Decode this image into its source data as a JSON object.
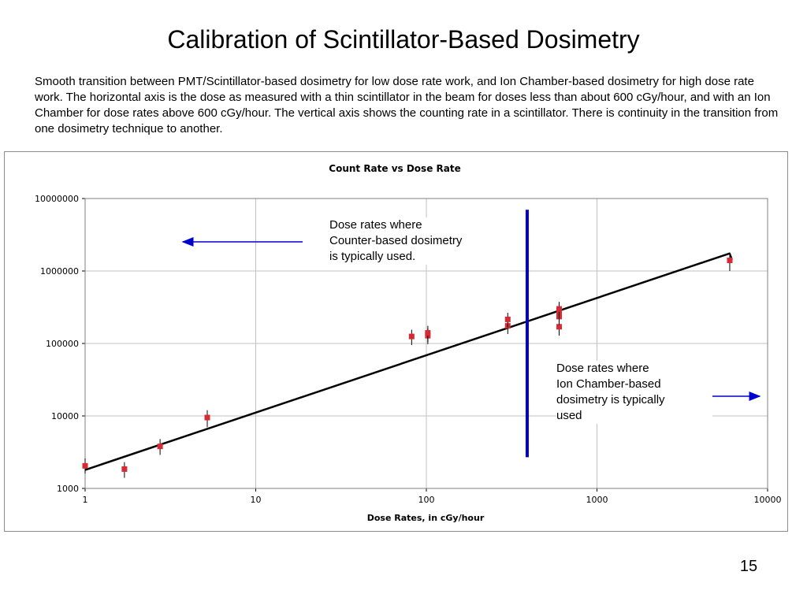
{
  "slide": {
    "title": "Calibration of Scintillator-Based Dosimetry",
    "description": "Smooth transition between PMT/Scintillator-based dosimetry for low dose rate work, and Ion Chamber-based dosimetry for high dose rate work.  The horizontal axis is the dose as measured with a thin scintillator in the beam for doses less than about 600 cGy/hour, and with an Ion Chamber for dose rates above 600 cGy/hour.  The vertical axis shows the counting rate in a scintillator.  There is continuity in the transition from one dosimetry technique to another.",
    "page_number": "15"
  },
  "chart_data": {
    "type": "scatter",
    "title": "Count Rate vs Dose Rate",
    "xlabel": "Dose Rates, in cGy/hour",
    "ylabel": "",
    "x_scale": "log",
    "y_scale": "log",
    "xlim": [
      1,
      10000
    ],
    "ylim": [
      1000,
      10000000
    ],
    "x_ticks": [
      "1",
      "10",
      "100",
      "1000",
      "10000"
    ],
    "y_ticks": [
      "1000",
      "10000",
      "100000",
      "1000000",
      "10000000"
    ],
    "grid": true,
    "legend": "none",
    "colors": {
      "marker": "#d62b35",
      "error_bar": "#000000",
      "fit_line": "#000000",
      "divider": "#0000cc",
      "arrow": "#0000cc",
      "grid": "#c0c0c0",
      "plot_background": "#ffffff"
    },
    "points": [
      {
        "x": 1.0,
        "y": 2050,
        "ylow": 1600,
        "yhigh": 2600
      },
      {
        "x": 1.7,
        "y": 1850,
        "ylow": 1400,
        "yhigh": 2300
      },
      {
        "x": 2.75,
        "y": 3800,
        "ylow": 2900,
        "yhigh": 4800
      },
      {
        "x": 5.2,
        "y": 9500,
        "ylow": 7000,
        "yhigh": 12000
      },
      {
        "x": 82,
        "y": 125000,
        "ylow": 95000,
        "yhigh": 155000
      },
      {
        "x": 102,
        "y": 128000,
        "ylow": 98000,
        "yhigh": 160000
      },
      {
        "x": 102,
        "y": 140000,
        "ylow": 105000,
        "yhigh": 175000
      },
      {
        "x": 300,
        "y": 175000,
        "ylow": 135000,
        "yhigh": 215000
      },
      {
        "x": 300,
        "y": 215000,
        "ylow": 165000,
        "yhigh": 265000
      },
      {
        "x": 600,
        "y": 170000,
        "ylow": 128000,
        "yhigh": 215000
      },
      {
        "x": 600,
        "y": 235000,
        "ylow": 180000,
        "yhigh": 290000
      },
      {
        "x": 600,
        "y": 275000,
        "ylow": 210000,
        "yhigh": 345000
      },
      {
        "x": 600,
        "y": 300000,
        "ylow": 230000,
        "yhigh": 375000
      },
      {
        "x": 6000,
        "y": 1400000,
        "ylow": 1000000,
        "yhigh": 1800000
      }
    ],
    "fit_line": {
      "x": [
        1,
        6000
      ],
      "y": [
        1800,
        1750000
      ]
    },
    "divider": {
      "x": 390,
      "y_range": [
        2700,
        7000000
      ]
    },
    "annotations": [
      {
        "text": "Dose rates where\nCounter-based dosimetry\nis typically used.",
        "arrow": "left"
      },
      {
        "text": "Dose rates where\nIon Chamber-based\ndosimetry is typically\nused",
        "arrow": "right"
      }
    ]
  }
}
